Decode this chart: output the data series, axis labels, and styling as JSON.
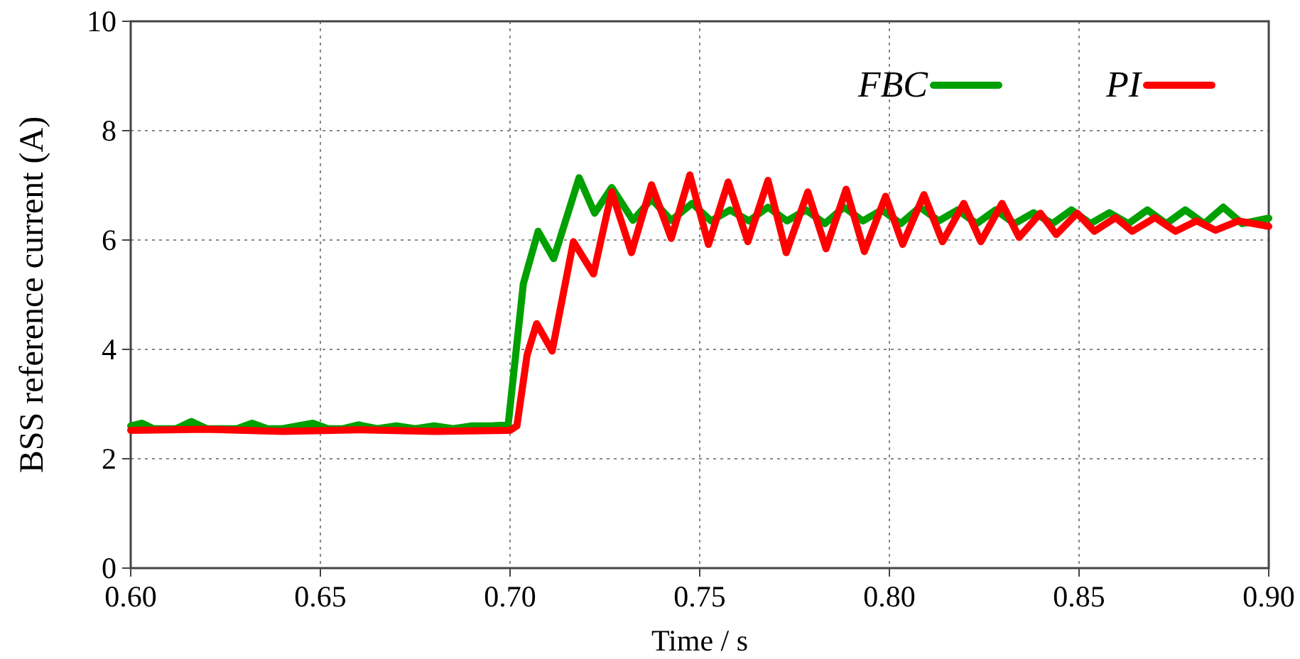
{
  "chart_data": {
    "type": "line",
    "xlabel": "Time / s",
    "ylabel": "BSS reference current (A)",
    "xlim": [
      0.6,
      0.9
    ],
    "xticks": [
      {
        "value": 0.6,
        "label": "0.60"
      },
      {
        "value": 0.65,
        "label": "0.65"
      },
      {
        "value": 0.7,
        "label": "0.70"
      },
      {
        "value": 0.75,
        "label": "0.75"
      },
      {
        "value": 0.8,
        "label": "0.80"
      },
      {
        "value": 0.85,
        "label": "0.85"
      },
      {
        "value": 0.9,
        "label": "0.90"
      }
    ],
    "ylim": [
      0,
      10
    ],
    "yticks": [
      0,
      2,
      4,
      6,
      8,
      10
    ],
    "grid": true,
    "legend": "top right",
    "line_style": "solid",
    "marker": "none",
    "series": [
      {
        "name": "FBC",
        "color": "#00a000",
        "x": [
          0.6,
          0.603,
          0.606,
          0.612,
          0.616,
          0.62,
          0.628,
          0.632,
          0.636,
          0.64,
          0.648,
          0.652,
          0.656,
          0.66,
          0.665,
          0.67,
          0.675,
          0.68,
          0.685,
          0.69,
          0.695,
          0.6995,
          0.7035,
          0.7074,
          0.7115,
          0.7182,
          0.7223,
          0.7268,
          0.7324,
          0.7373,
          0.7425,
          0.748,
          0.753,
          0.758,
          0.763,
          0.768,
          0.773,
          0.778,
          0.783,
          0.788,
          0.793,
          0.798,
          0.803,
          0.808,
          0.813,
          0.818,
          0.823,
          0.828,
          0.833,
          0.838,
          0.843,
          0.848,
          0.853,
          0.858,
          0.863,
          0.868,
          0.873,
          0.878,
          0.883,
          0.888,
          0.893,
          0.9
        ],
        "values": [
          2.6,
          2.65,
          2.55,
          2.55,
          2.68,
          2.55,
          2.55,
          2.65,
          2.55,
          2.55,
          2.65,
          2.55,
          2.55,
          2.62,
          2.55,
          2.6,
          2.55,
          2.6,
          2.55,
          2.6,
          2.6,
          2.62,
          5.2,
          6.16,
          5.66,
          7.14,
          6.49,
          6.96,
          6.36,
          6.75,
          6.36,
          6.67,
          6.35,
          6.55,
          6.35,
          6.6,
          6.35,
          6.55,
          6.3,
          6.6,
          6.35,
          6.55,
          6.3,
          6.6,
          6.35,
          6.55,
          6.3,
          6.55,
          6.3,
          6.5,
          6.3,
          6.55,
          6.3,
          6.5,
          6.3,
          6.55,
          6.3,
          6.55,
          6.3,
          6.6,
          6.3,
          6.4
        ]
      },
      {
        "name": "PI",
        "color": "#ff0000",
        "x": [
          0.6,
          0.62,
          0.64,
          0.66,
          0.68,
          0.7,
          0.7018,
          0.7045,
          0.707,
          0.7111,
          0.7167,
          0.722,
          0.7268,
          0.732,
          0.7373,
          0.7425,
          0.7474,
          0.7523,
          0.7575,
          0.7627,
          0.768,
          0.7728,
          0.7785,
          0.7833,
          0.7886,
          0.7934,
          0.799,
          0.8035,
          0.8091,
          0.814,
          0.8196,
          0.8241,
          0.8297,
          0.8342,
          0.8398,
          0.844,
          0.8495,
          0.854,
          0.8596,
          0.864,
          0.87,
          0.8754,
          0.881,
          0.886,
          0.892,
          0.9
        ],
        "values": [
          2.52,
          2.54,
          2.5,
          2.53,
          2.5,
          2.52,
          2.6,
          3.9,
          4.47,
          3.97,
          5.97,
          5.38,
          6.88,
          5.77,
          7.01,
          6.03,
          7.19,
          5.92,
          7.06,
          5.97,
          7.09,
          5.77,
          6.88,
          5.84,
          6.93,
          5.79,
          6.8,
          5.92,
          6.83,
          5.97,
          6.67,
          5.97,
          6.67,
          6.05,
          6.49,
          6.1,
          6.49,
          6.16,
          6.41,
          6.16,
          6.41,
          6.16,
          6.35,
          6.18,
          6.35,
          6.25
        ]
      }
    ]
  }
}
